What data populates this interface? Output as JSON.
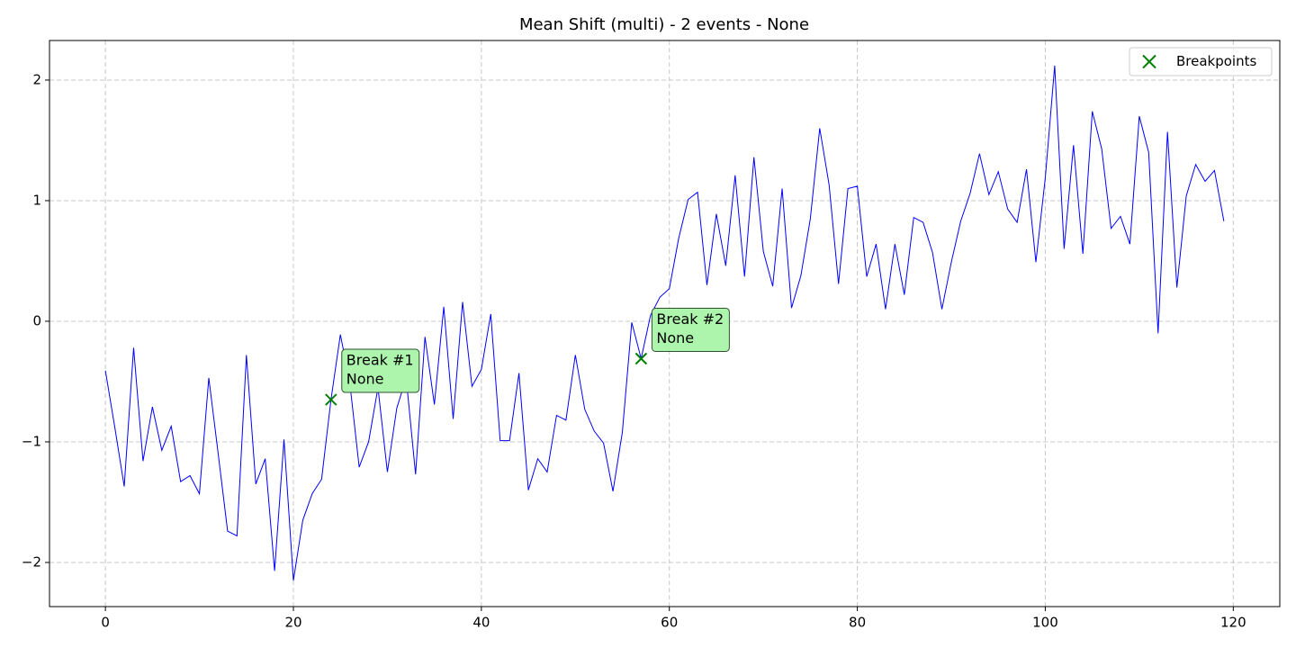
{
  "chart_data": {
    "type": "line",
    "title": "Mean Shift (multi) - 2 events - None",
    "x": [
      0,
      1,
      2,
      3,
      4,
      5,
      6,
      7,
      8,
      9,
      10,
      11,
      12,
      13,
      14,
      15,
      16,
      17,
      18,
      19,
      20,
      21,
      22,
      23,
      24,
      25,
      26,
      27,
      28,
      29,
      30,
      31,
      32,
      33,
      34,
      35,
      36,
      37,
      38,
      39,
      40,
      41,
      42,
      43,
      44,
      45,
      46,
      47,
      48,
      49,
      50,
      51,
      52,
      53,
      54,
      55,
      56,
      57,
      58,
      59,
      60,
      61,
      62,
      63,
      64,
      65,
      66,
      67,
      68,
      69,
      70,
      71,
      72,
      73,
      74,
      75,
      76,
      77,
      78,
      79,
      80,
      81,
      82,
      83,
      84,
      85,
      86,
      87,
      88,
      89,
      90,
      91,
      92,
      93,
      94,
      95,
      96,
      97,
      98,
      99,
      100,
      101,
      102,
      103,
      104,
      105,
      106,
      107,
      108,
      109,
      110,
      111,
      112,
      113,
      114,
      115,
      116,
      117,
      118,
      119
    ],
    "line": {
      "color": "#0000ff",
      "values": [
        -0.41,
        -0.88,
        -1.37,
        -0.22,
        -1.16,
        -0.71,
        -1.07,
        -0.87,
        -1.33,
        -1.28,
        -1.43,
        -0.47,
        -1.1,
        -1.74,
        -1.78,
        -0.28,
        -1.35,
        -1.14,
        -2.07,
        -0.98,
        -2.15,
        -1.65,
        -1.43,
        -1.31,
        -0.65,
        -0.11,
        -0.51,
        -1.21,
        -1.0,
        -0.55,
        -1.25,
        -0.72,
        -0.47,
        -1.27,
        -0.13,
        -0.69,
        0.12,
        -0.81,
        0.16,
        -0.54,
        -0.4,
        0.06,
        -0.99,
        -0.99,
        -0.43,
        -1.4,
        -1.14,
        -1.25,
        -0.78,
        -0.82,
        -0.28,
        -0.73,
        -0.91,
        -1.01,
        -1.41,
        -0.92,
        -0.01,
        -0.31,
        0.05,
        0.2,
        0.27,
        0.69,
        1.01,
        1.07,
        0.3,
        0.89,
        0.46,
        1.21,
        0.37,
        1.36,
        0.58,
        0.29,
        1.1,
        0.11,
        0.38,
        0.85,
        1.6,
        1.13,
        0.31,
        1.1,
        1.12,
        0.37,
        0.64,
        0.1,
        0.64,
        0.22,
        0.86,
        0.82,
        0.57,
        0.1,
        0.49,
        0.83,
        1.06,
        1.39,
        1.05,
        1.24,
        0.93,
        0.82,
        1.26,
        0.49,
        1.19,
        2.12,
        0.6,
        1.46,
        0.56,
        1.74,
        1.43,
        0.77,
        0.87,
        0.64,
        1.7,
        1.4,
        -0.1,
        1.57,
        0.28,
        1.04,
        1.3,
        1.16,
        1.25,
        0.83
      ]
    },
    "breakpoints": {
      "name": "Breakpoints",
      "color": "#008000",
      "x": [
        24,
        57
      ],
      "values": [
        -0.65,
        -0.31
      ],
      "annotations": [
        {
          "label": "Break #1",
          "note": "None"
        },
        {
          "label": "Break #2",
          "note": "None"
        }
      ]
    },
    "xlim": [
      -5.95,
      124.95
    ],
    "ylim": [
      -2.366,
      2.328
    ],
    "xticks": [
      0,
      20,
      40,
      60,
      80,
      100,
      120
    ],
    "yticks": [
      {
        "value": -2,
        "label": "−2"
      },
      {
        "value": -1,
        "label": "−1"
      },
      0,
      1,
      2
    ],
    "grid": true,
    "legend": "upper right"
  }
}
